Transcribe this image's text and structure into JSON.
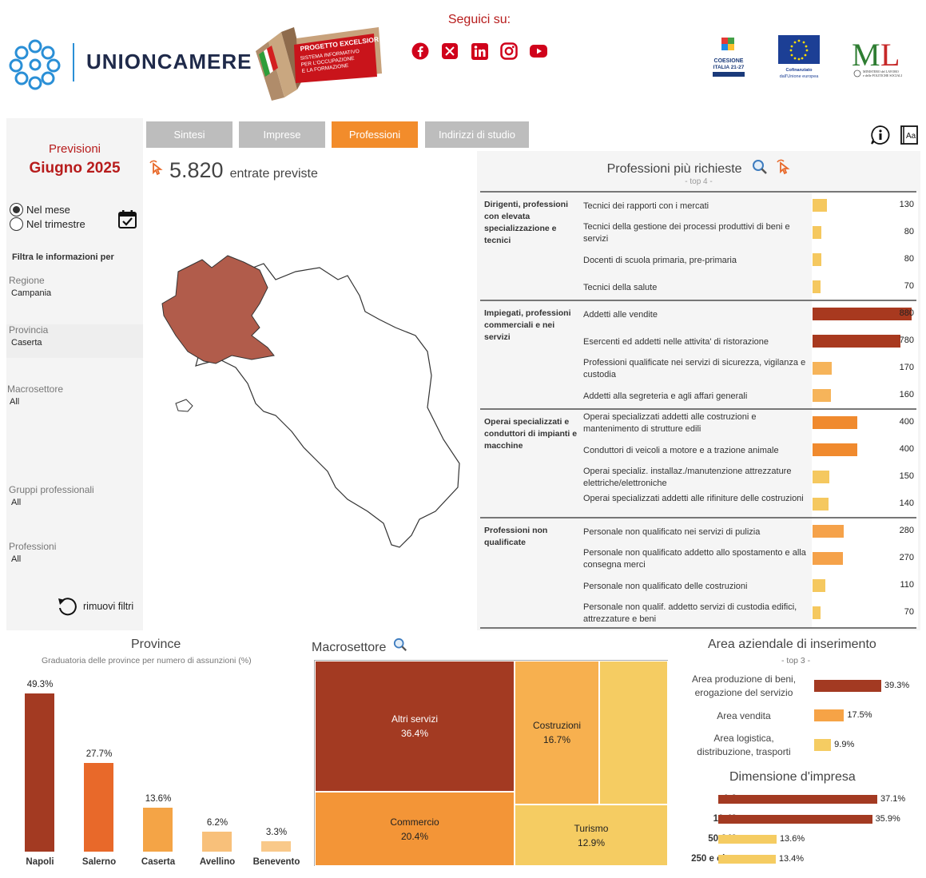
{
  "header": {
    "social_title": "Seguici su:",
    "social_icons": [
      "facebook-icon",
      "x-icon",
      "linkedin-icon",
      "instagram-icon",
      "youtube-icon"
    ],
    "logo_text": "UNIONCAMERE",
    "excelsior": {
      "title": "PROGETTO EXCELSIOR",
      "line1": "SISTEMA INFORMATIVO",
      "line2": "PER L'OCCUPAZIONE",
      "line3": "E LA FORMAZIONE"
    },
    "partners": {
      "coesione": "COESIONE ITALIA 21-27",
      "eu": "Cofinanziato dall'Unione europea",
      "ministry": "MINISTERO del LAVORO e delle POLITICHE SOCIALI"
    }
  },
  "filters": {
    "previsioni_label": "Previsioni",
    "month": "Giugno 2025",
    "radio_mese": "Nel mese",
    "radio_trimestre": "Nel trimestre",
    "filter_heading": "Filtra le informazioni per",
    "regione_label": "Regione",
    "regione_value": "Campania",
    "provincia_label": "Provincia",
    "provincia_value": "Caserta",
    "macrosettore_label": "Macrosettore",
    "macrosettore_value": "All",
    "gruppi_label": "Gruppi professionali",
    "gruppi_value": "All",
    "professioni_label": "Professioni",
    "professioni_value": "All",
    "reset_label": "rimuovi filtri"
  },
  "tabs": [
    "Sintesi",
    "Imprese",
    "Professioni",
    "Indirizzi di studio"
  ],
  "active_tab": "Professioni",
  "kpi": {
    "value": "5.820",
    "label": "entrate previste"
  },
  "professions": {
    "title": "Professioni più richieste",
    "subtitle": "- top 4 -",
    "max": 880,
    "groups": [
      {
        "name": "Dirigenti, professioni con elevata specializzazione e tecnici",
        "items": [
          {
            "name": "Tecnici dei rapporti con i mercati",
            "value": 130
          },
          {
            "name": "Tecnici della gestione dei processi produttivi di beni e servizi",
            "value": 80
          },
          {
            "name": "Docenti di scuola primaria, pre-primaria",
            "value": 80
          },
          {
            "name": "Tecnici della salute",
            "value": 70
          }
        ]
      },
      {
        "name": "Impiegati, professioni commerciali e nei servizi",
        "items": [
          {
            "name": "Addetti alle vendite",
            "value": 880
          },
          {
            "name": "Esercenti ed addetti nelle attivita' di ristorazione",
            "value": 780
          },
          {
            "name": "Professioni qualificate nei servizi di sicurezza, vigilanza e custodia",
            "value": 170
          },
          {
            "name": "Addetti alla segreteria e agli affari generali",
            "value": 160
          }
        ]
      },
      {
        "name": "Operai specializzati e conduttori di impianti e macchine",
        "items": [
          {
            "name": "Operai specializzati addetti alle costruzioni e mantenimento di strutture edili",
            "value": 400
          },
          {
            "name": "Conduttori di veicoli a motore e a trazione animale",
            "value": 400
          },
          {
            "name": "Operai specializ. installaz./manutenzione attrezzature elettriche/elettroniche",
            "value": 150
          },
          {
            "name": "Operai specializzati addetti alle rifiniture delle costruzioni",
            "value": 140
          }
        ]
      },
      {
        "name": "Professioni non qualificate",
        "items": [
          {
            "name": "Personale non qualificato nei servizi di pulizia",
            "value": 280
          },
          {
            "name": "Personale non qualificato addetto allo spostamento e alla consegna merci",
            "value": 270
          },
          {
            "name": "Personale non qualificato delle costruzioni",
            "value": 110
          },
          {
            "name": "Personale non qualif. addetto servizi di custodia edifici, attrezzature e beni",
            "value": 70
          }
        ]
      }
    ]
  },
  "province": {
    "title": "Province",
    "subtitle": "Graduatoria delle province per numero di assunzioni (%)",
    "items": [
      {
        "name": "Napoli",
        "value": 49.3,
        "label": "49.3%",
        "color": "#a33a22"
      },
      {
        "name": "Salerno",
        "value": 27.7,
        "label": "27.7%",
        "color": "#e8692a"
      },
      {
        "name": "Caserta",
        "value": 13.6,
        "label": "13.6%",
        "color": "#f4a446"
      },
      {
        "name": "Avellino",
        "value": 6.2,
        "label": "6.2%",
        "color": "#f8c07a"
      },
      {
        "name": "Benevento",
        "value": 3.3,
        "label": "3.3%",
        "color": "#f9c98a"
      }
    ]
  },
  "macrosettore": {
    "title": "Macrosettore",
    "cells": [
      {
        "name": "Altri servizi",
        "label": "36.4%",
        "color": "#a33a22",
        "text_color": "#ffffff"
      },
      {
        "name": "Commercio",
        "label": "20.4%",
        "color": "#f39537",
        "text_color": "#222222"
      },
      {
        "name": "Costruzioni",
        "label": "16.7%",
        "color": "#f7b04f",
        "text_color": "#222222"
      },
      {
        "name": "",
        "label": "",
        "color": "#f5cc62",
        "text_color": "#222222"
      },
      {
        "name": "Turismo",
        "label": "12.9%",
        "color": "#f5cc62",
        "text_color": "#222222"
      }
    ]
  },
  "area": {
    "title": "Area aziendale di inserimento",
    "subtitle": "- top 3 -",
    "items": [
      {
        "name": "Area produzione di beni, erogazione del servizio",
        "value": 39.3,
        "label": "39.3%",
        "color": "#a33a22"
      },
      {
        "name": "Area vendita",
        "value": 17.5,
        "label": "17.5%",
        "color": "#f6a346"
      },
      {
        "name": "Area logistica, distribuzione, trasporti",
        "value": 9.9,
        "label": "9.9%",
        "color": "#f5cc62"
      }
    ]
  },
  "dimensione": {
    "title": "Dimensione d'impresa",
    "items": [
      {
        "name": "1-9",
        "value": 37.1,
        "label": "37.1%",
        "color": "#a33a22"
      },
      {
        "name": "10-49",
        "value": 35.9,
        "label": "35.9%",
        "color": "#a33a22"
      },
      {
        "name": "50-249",
        "value": 13.6,
        "label": "13.6%",
        "color": "#f5cc62"
      },
      {
        "name": "250 e oltre",
        "value": 13.4,
        "label": "13.4%",
        "color": "#f5cc62"
      }
    ]
  }
}
